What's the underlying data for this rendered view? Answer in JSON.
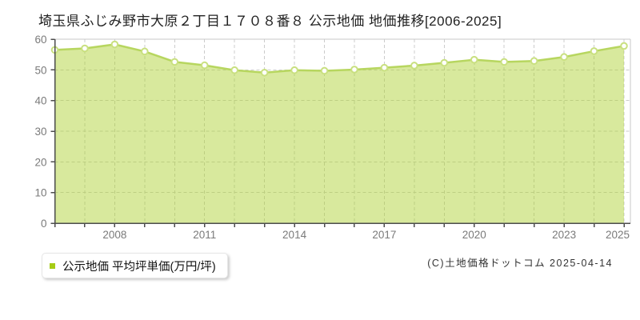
{
  "page": {
    "title": "埼玉県ふじみ野市大原２丁目１７０８番８ 公示地価 地価推移[2006-2025]",
    "copyright": "(C)土地価格ドットコム 2025-04-14"
  },
  "legend": {
    "label": "公示地価 平均坪単価(万円/坪)",
    "marker_color": "#a6cc15"
  },
  "chart_data": {
    "type": "area",
    "title": "埼玉県ふじみ野市大原２丁目１７０８番８ 公示地価 地価推移[2006-2025]",
    "series_name": "公示地価 平均坪単価(万円/坪)",
    "x": [
      2006,
      2007,
      2008,
      2009,
      2010,
      2011,
      2012,
      2013,
      2014,
      2015,
      2016,
      2017,
      2018,
      2019,
      2020,
      2021,
      2022,
      2023,
      2024,
      2025
    ],
    "values": [
      56.5,
      57.0,
      58.3,
      56.0,
      52.6,
      51.5,
      49.9,
      49.1,
      49.9,
      49.7,
      50.1,
      50.7,
      51.4,
      52.3,
      53.3,
      52.6,
      52.9,
      54.2,
      56.1,
      57.8
    ],
    "ylabel": "",
    "xlabel": "",
    "ylim": [
      0,
      60
    ],
    "yticks": [
      0,
      10,
      20,
      30,
      40,
      50,
      60
    ],
    "xticks_labeled": [
      2008,
      2011,
      2014,
      2017,
      2020,
      2023,
      2025
    ],
    "grid": true,
    "legend_position": "bottom-left",
    "colors": {
      "line": "#b7d65f",
      "fill": "rgba(173,210,51,0.48)",
      "marker_fill": "#ffffff",
      "marker_stroke": "#c9e080",
      "grid": "#cccccc",
      "axis": "#4d4d4d",
      "border": "#c8c8c8",
      "tick_text": "#7a7a7a"
    }
  }
}
